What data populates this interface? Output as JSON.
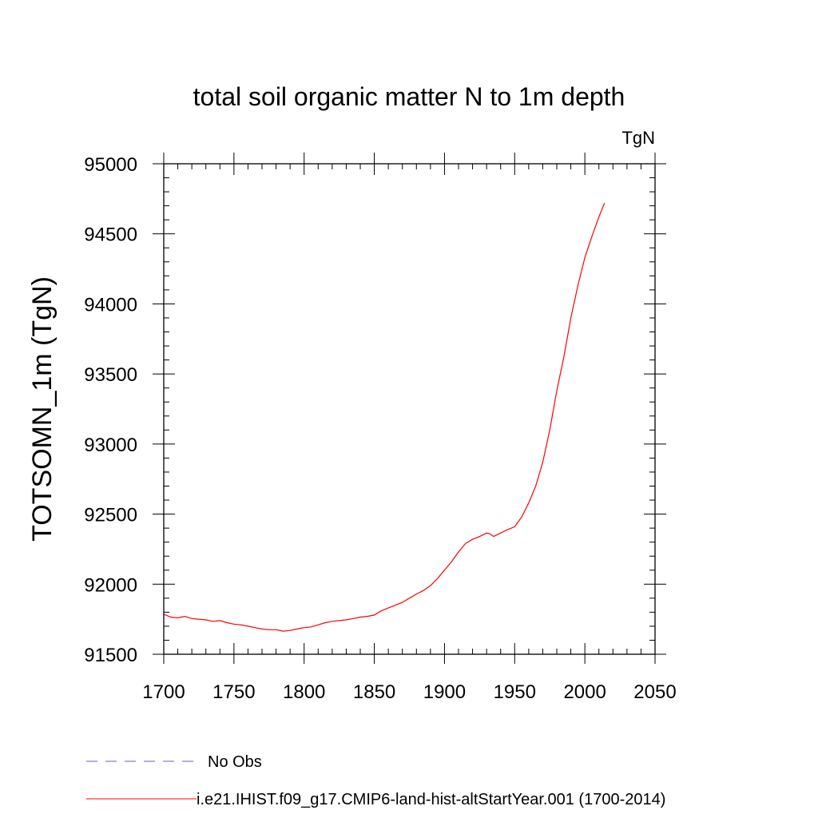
{
  "chart_data": {
    "type": "line",
    "title": "total soil organic matter N to 1m depth",
    "units": "TgN",
    "xlabel": "",
    "ylabel": "TOTSOMN_1m  (TgN)",
    "xlim": [
      1700,
      2050
    ],
    "ylim": [
      91500,
      95000
    ],
    "x_ticks": [
      1700,
      1750,
      1800,
      1850,
      1900,
      1950,
      2000,
      2050
    ],
    "x_tick_labels": [
      "1700",
      "1750",
      "1800",
      "1850",
      "1900",
      "1950",
      "2000",
      "2050"
    ],
    "y_ticks": [
      91500,
      92000,
      92500,
      93000,
      93500,
      94000,
      94500,
      95000
    ],
    "y_tick_labels": [
      "91500",
      "92000",
      "92500",
      "93000",
      "93500",
      "94000",
      "94500",
      "95000"
    ],
    "grid": false,
    "legend_position": "bottom",
    "series": [
      {
        "name": "No Obs",
        "color": "#6a5acd",
        "style": "dashed",
        "x": [],
        "y": []
      },
      {
        "name": "i.e21.IHIST.f09_g17.CMIP6-land-hist-altStartYear.001 (1700-2014)",
        "color": "#ff0000",
        "style": "solid",
        "x": [
          1700,
          1705,
          1710,
          1715,
          1720,
          1725,
          1730,
          1735,
          1740,
          1745,
          1750,
          1755,
          1760,
          1765,
          1770,
          1775,
          1780,
          1785,
          1790,
          1795,
          1800,
          1805,
          1810,
          1815,
          1820,
          1825,
          1830,
          1835,
          1840,
          1845,
          1850,
          1855,
          1860,
          1865,
          1870,
          1875,
          1880,
          1885,
          1890,
          1895,
          1900,
          1905,
          1910,
          1915,
          1920,
          1925,
          1930,
          1932,
          1935,
          1940,
          1945,
          1950,
          1955,
          1960,
          1965,
          1970,
          1975,
          1980,
          1985,
          1990,
          1995,
          2000,
          2005,
          2010,
          2014
        ],
        "y": [
          91785,
          91765,
          91760,
          91770,
          91755,
          91750,
          91745,
          91735,
          91740,
          91725,
          91715,
          91710,
          91700,
          91690,
          91680,
          91675,
          91675,
          91665,
          91670,
          91680,
          91690,
          91695,
          91710,
          91725,
          91735,
          91740,
          91745,
          91755,
          91765,
          91770,
          91780,
          91810,
          91830,
          91850,
          91870,
          91900,
          91930,
          91955,
          91990,
          92040,
          92100,
          92160,
          92230,
          92290,
          92320,
          92340,
          92365,
          92360,
          92340,
          92365,
          92390,
          92410,
          92480,
          92580,
          92700,
          92870,
          93100,
          93380,
          93620,
          93900,
          94130,
          94330,
          94480,
          94620,
          94720
        ]
      }
    ]
  }
}
